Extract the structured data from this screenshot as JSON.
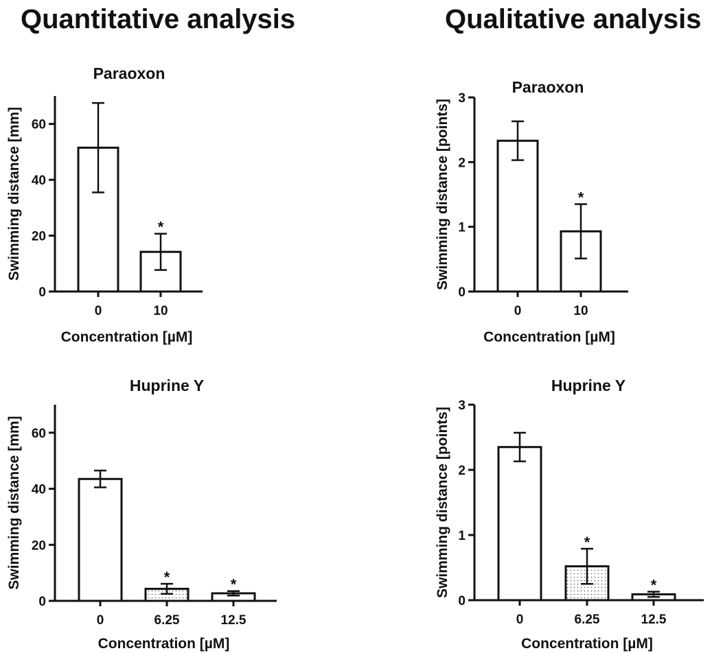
{
  "sections": {
    "left_title": "Quantitative analysis",
    "right_title": "Qualitative analysis"
  },
  "chart_data": [
    {
      "type": "bar",
      "title": "Paraoxon",
      "xlabel": "Concentration [µM]",
      "ylabel": "Swimming distance [mm]",
      "categories": [
        "0",
        "10"
      ],
      "values": [
        51.5,
        14.2
      ],
      "errors": [
        16,
        6.5
      ],
      "significance": [
        "",
        "*"
      ],
      "fills": [
        "none",
        "none"
      ],
      "yticks": [
        0,
        20,
        40,
        60
      ],
      "ylim": [
        0,
        70
      ],
      "grid": false
    },
    {
      "type": "bar",
      "title": "Paraoxon",
      "xlabel": "Concentration [µM]",
      "ylabel": "Swimming distance [points]",
      "categories": [
        "0",
        "10"
      ],
      "values": [
        2.33,
        0.93
      ],
      "errors": [
        0.3,
        0.42
      ],
      "significance": [
        "",
        "*"
      ],
      "fills": [
        "none",
        "none"
      ],
      "yticks": [
        0,
        1,
        2,
        3
      ],
      "ylim": [
        0,
        3
      ],
      "grid": false
    },
    {
      "type": "bar",
      "title": "Huprine Y",
      "xlabel": "Concentration [µM]",
      "ylabel": "Swimming distance [mm]",
      "categories": [
        "0",
        "6.25",
        "12.5"
      ],
      "values": [
        43.5,
        4.3,
        2.7
      ],
      "errors": [
        3,
        1.8,
        0.8
      ],
      "significance": [
        "",
        "*",
        "*"
      ],
      "fills": [
        "none",
        "dotted",
        "none"
      ],
      "yticks": [
        0,
        20,
        40,
        60
      ],
      "ylim": [
        0,
        70
      ],
      "grid": false
    },
    {
      "type": "bar",
      "title": "Huprine Y",
      "xlabel": "Concentration [µM]",
      "ylabel": "Swimming distance [points]",
      "categories": [
        "0",
        "6.25",
        "12.5"
      ],
      "values": [
        2.35,
        0.52,
        0.09
      ],
      "errors": [
        0.22,
        0.27,
        0.04
      ],
      "significance": [
        "",
        "*",
        "*"
      ],
      "fills": [
        "none",
        "dotted",
        "none"
      ],
      "yticks": [
        0,
        1,
        2,
        3
      ],
      "ylim": [
        0,
        3
      ],
      "grid": false
    }
  ]
}
